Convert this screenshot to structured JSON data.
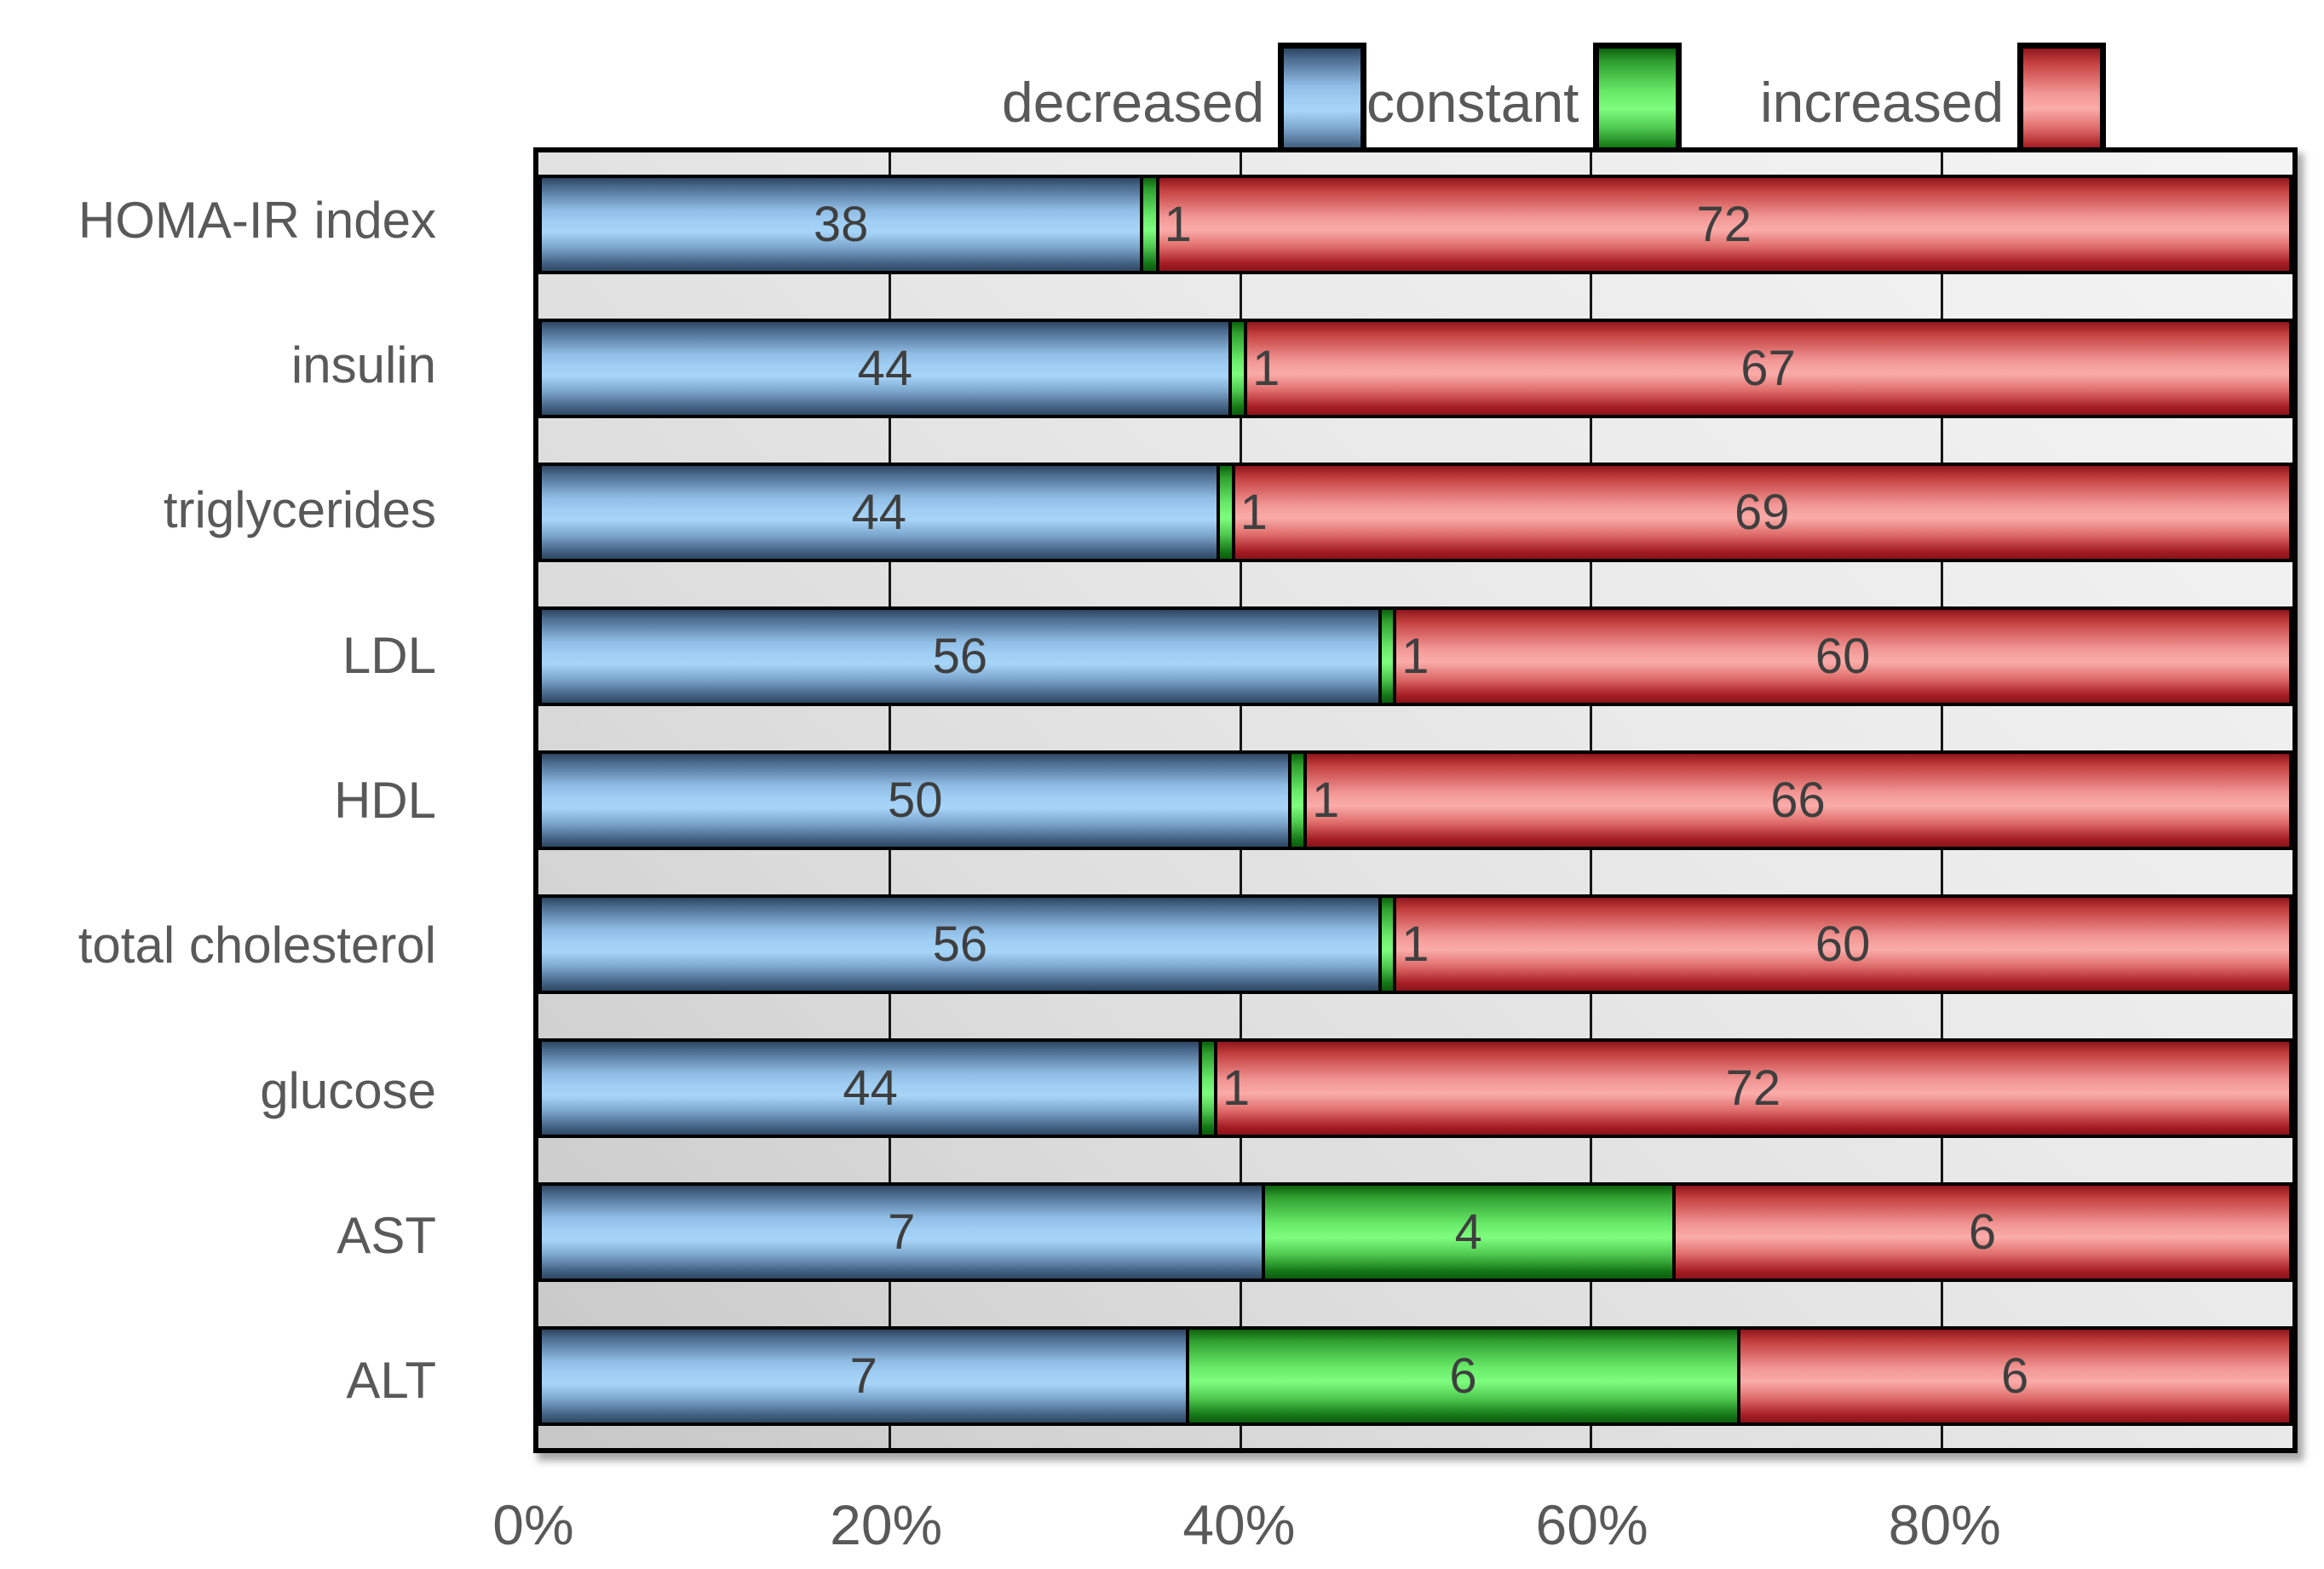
{
  "legend": {
    "items": [
      {
        "label": "decreased",
        "series_key": "decreased",
        "color": "#A7D5F8"
      },
      {
        "label": "constant",
        "series_key": "constant",
        "color": "#7EFD7E"
      },
      {
        "label": "increased",
        "series_key": "increased",
        "color": "#FAACA9"
      }
    ]
  },
  "chart_data": {
    "type": "bar",
    "orientation": "horizontal",
    "stacked": true,
    "normalized_to_100_percent": true,
    "title": "",
    "xlabel": "",
    "ylabel": "",
    "categories": [
      "HOMA-IR index",
      "insulin",
      "triglycerides",
      "LDL",
      "HDL",
      "total cholesterol",
      "glucose",
      "AST",
      "ALT"
    ],
    "series": [
      {
        "name": "decreased",
        "color": "#A7D5F8",
        "values": [
          38,
          44,
          44,
          56,
          50,
          56,
          44,
          7,
          7
        ]
      },
      {
        "name": "constant",
        "color": "#7EFD7E",
        "values": [
          1,
          1,
          1,
          1,
          1,
          1,
          1,
          4,
          6
        ]
      },
      {
        "name": "increased",
        "color": "#FAACA9",
        "values": [
          72,
          67,
          69,
          60,
          66,
          60,
          72,
          6,
          6
        ]
      }
    ],
    "x_ticks": [
      "0%",
      "20%",
      "40%",
      "60%",
      "80%"
    ],
    "xlim": [
      0,
      100
    ],
    "gridlines": "vertical, every 20%",
    "legend_position": "top",
    "bar_label_color": "#3F3F3F",
    "axis_text_color": "#595959",
    "gridline_color": "#161616",
    "plot_background": "gray gradient"
  },
  "layout_hints": {
    "tick_percent_step": 20
  }
}
